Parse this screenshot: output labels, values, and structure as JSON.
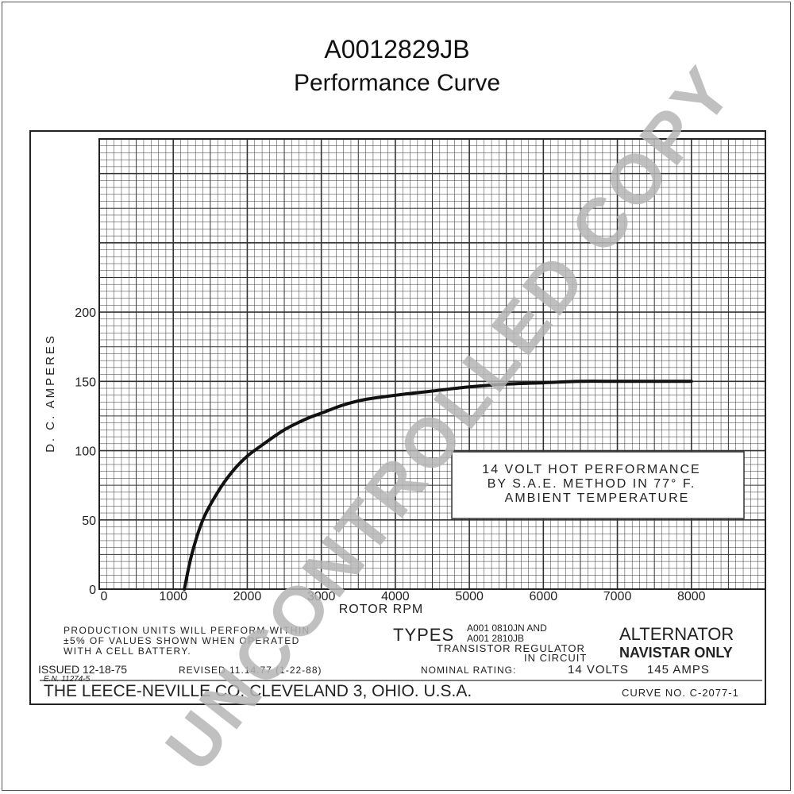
{
  "title": "A0012829JB",
  "subtitle": "Performance Curve",
  "watermark": "UNCONTROLLED COPY",
  "chart_data": {
    "type": "line",
    "xlabel": "ROTOR RPM",
    "ylabel": "D. C. AMPERES",
    "xlim": [
      0,
      9000
    ],
    "ylim": [
      0,
      325
    ],
    "grid": true,
    "x_ticks": [
      "0",
      "1000",
      "2000",
      "3000",
      "4000",
      "5000",
      "6000",
      "7000",
      "8000"
    ],
    "x_tick_values": [
      0,
      1000,
      2000,
      3000,
      4000,
      5000,
      6000,
      7000,
      8000
    ],
    "y_ticks": [
      "0",
      "50",
      "100",
      "150",
      "200"
    ],
    "y_tick_values": [
      0,
      50,
      100,
      150,
      200
    ],
    "series": [
      {
        "x": [
          1150,
          1250,
          1400,
          1600,
          1800,
          2000,
          2200,
          2500,
          2800,
          3000,
          3300,
          3600,
          4000,
          4500,
          5000,
          5500,
          6000,
          6500,
          7000,
          7500,
          8000
        ],
        "y": [
          0,
          25,
          50,
          70,
          85,
          96,
          104,
          115,
          123,
          127,
          133,
          137,
          140,
          143,
          146,
          148,
          149,
          150,
          150,
          150,
          150
        ]
      }
    ],
    "annotation": {
      "line1": "14 VOLT HOT PERFORMANCE",
      "line2": "BY S.A.E. METHOD IN 77° F.",
      "line3": "AMBIENT TEMPERATURE"
    }
  },
  "footer": {
    "production_line1": "PRODUCTION UNITS WILL PERFORM WITHIN",
    "production_line2": "±5% OF VALUES SHOWN WHEN OPERATED",
    "production_line3": "WITH A CELL BATTERY.",
    "issued": "ISSUED 12-18-75",
    "en": "E.N. 11274-5",
    "revised": "REVISED 11.14.77 (1-22-88)",
    "types_label": "TYPES",
    "types_line1": "A001 0810JN AND",
    "types_line2": "A001 2810JB",
    "transistor_line1": "TRANSISTOR REGULATOR",
    "transistor_line2": "IN CIRCUIT",
    "alternator": "ALTERNATOR",
    "navistar": "NAVISTAR ONLY",
    "nominal_rating": "NOMINAL RATING:",
    "volts": "14 VOLTS",
    "amps": "145 AMPS",
    "company": "THE LEECE-NEVILLE CO. CLEVELAND 3, OHIO. U.S.A.",
    "curve_no": "CURVE NO. C-2077-1"
  }
}
